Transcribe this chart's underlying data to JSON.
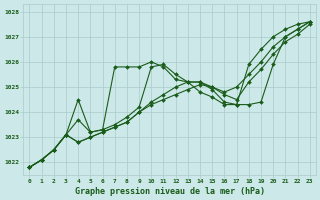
{
  "title": "Graphe pression niveau de la mer (hPa)",
  "xlabel_hours": [
    0,
    1,
    2,
    3,
    4,
    5,
    6,
    7,
    8,
    9,
    10,
    11,
    12,
    13,
    14,
    15,
    16,
    17,
    18,
    19,
    20,
    21,
    22,
    23
  ],
  "ylim": [
    1021.5,
    1028.3
  ],
  "yticks": [
    1022,
    1023,
    1024,
    1025,
    1026,
    1027,
    1028
  ],
  "background_color": "#cce8e8",
  "grid_color": "#aacccc",
  "line_color": "#1a5c1a",
  "lines": [
    [
      1021.8,
      1022.1,
      1022.5,
      1023.1,
      1023.7,
      1023.2,
      1023.3,
      1025.8,
      1025.8,
      1025.8,
      1026.0,
      1025.8,
      1025.3,
      1025.2,
      1024.8,
      1024.6,
      1024.3,
      1024.3,
      1025.9,
      1026.5,
      1027.0,
      1027.3,
      1027.5,
      1027.6
    ],
    [
      1021.8,
      1022.1,
      1022.5,
      1023.1,
      1024.5,
      1023.2,
      1023.3,
      1023.5,
      1023.8,
      1024.2,
      1025.8,
      1025.9,
      1025.5,
      1025.2,
      1025.2,
      1024.9,
      1024.4,
      1024.3,
      1024.3,
      1024.4,
      1025.9,
      1027.0,
      1027.3,
      1027.6
    ],
    [
      1021.8,
      1022.1,
      1022.5,
      1023.1,
      1022.8,
      1023.0,
      1023.2,
      1023.4,
      1023.6,
      1024.0,
      1024.4,
      1024.7,
      1025.0,
      1025.2,
      1025.2,
      1025.0,
      1024.8,
      1025.0,
      1025.5,
      1026.0,
      1026.6,
      1027.0,
      1027.3,
      1027.6
    ],
    [
      1021.8,
      1022.1,
      1022.5,
      1023.1,
      1022.8,
      1023.0,
      1023.2,
      1023.4,
      1023.6,
      1024.0,
      1024.3,
      1024.5,
      1024.7,
      1024.9,
      1025.1,
      1025.0,
      1024.7,
      1024.5,
      1025.2,
      1025.7,
      1026.3,
      1026.8,
      1027.1,
      1027.5
    ]
  ]
}
